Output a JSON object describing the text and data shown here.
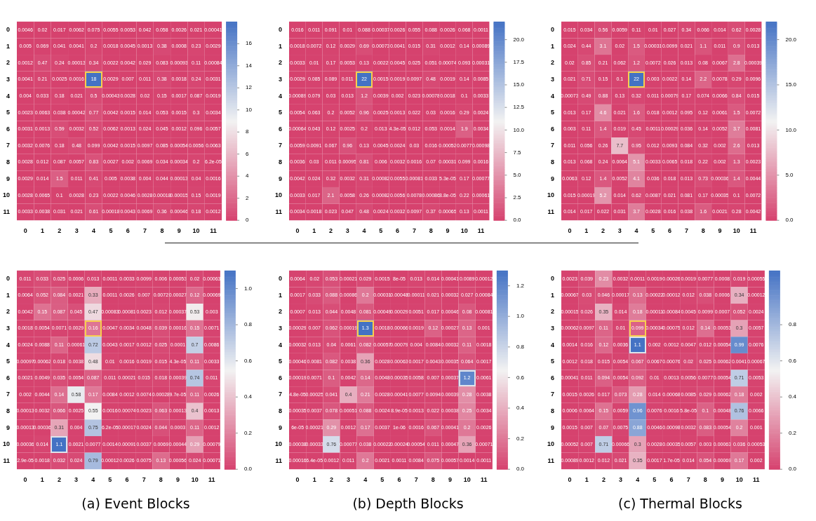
{
  "chart_data": [
    {
      "type": "heatmap",
      "categories": [
        "0",
        "1",
        "2",
        "3",
        "4",
        "5",
        "6",
        "7",
        "8",
        "9",
        "10",
        "11"
      ],
      "y_categories": [
        "0",
        "1",
        "2",
        "3",
        "4",
        "5",
        "6",
        "7",
        "8",
        "9",
        "10",
        "11"
      ],
      "data_labels": true,
      "clim": [
        0,
        18
      ],
      "cticks": [
        0,
        2,
        4,
        6,
        8,
        10,
        12,
        14,
        16
      ],
      "cells": [
        [
          0.0046,
          0.02,
          0.017,
          0.0062,
          0.075,
          0.0055,
          0.0053,
          0.042,
          0.058,
          0.0026,
          0.021,
          0.00041
        ],
        [
          0.005,
          0.069,
          0.041,
          0.0041,
          0.2,
          0.0018,
          0.0045,
          0.0013,
          0.38,
          0.0008,
          0.23,
          0.0029
        ],
        [
          0.0012,
          0.47,
          0.24,
          0.00013,
          0.34,
          0.0022,
          0.0042,
          0.029,
          0.083,
          0.00093,
          0.11,
          0.00084
        ],
        [
          0.0041,
          0.21,
          0.0025,
          0.0016,
          18,
          0.0029,
          0.007,
          0.011,
          0.38,
          0.0018,
          0.24,
          0.0031
        ],
        [
          0.004,
          0.033,
          0.18,
          0.021,
          0.5,
          0.00043,
          0.0028,
          0.02,
          0.15,
          0.0017,
          0.087,
          0.0019
        ],
        [
          0.0023,
          0.0063,
          0.038,
          0.00042,
          0.77,
          0.0042,
          0.0015,
          0.014,
          0.053,
          0.0015,
          0.3,
          0.0034
        ],
        [
          0.0031,
          0.0013,
          0.59,
          0.0032,
          0.52,
          0.0062,
          0.0013,
          0.024,
          0.045,
          0.0012,
          0.096,
          0.0057
        ],
        [
          0.0032,
          0.0076,
          0.18,
          0.48,
          0.099,
          0.0042,
          0.0015,
          0.0097,
          0.085,
          0.00054,
          0.0056,
          0.0063
        ],
        [
          0.0028,
          0.012,
          0.087,
          0.0057,
          0.83,
          0.0027,
          0.002,
          0.0069,
          0.034,
          0.00034,
          0.2,
          6.2e-05
        ],
        [
          0.0029,
          0.014,
          1.5,
          0.011,
          0.41,
          0.005,
          0.0038,
          0.004,
          0.044,
          0.00013,
          0.04,
          0.0016
        ],
        [
          0.0028,
          0.0065,
          0.1,
          0.0028,
          0.23,
          0.0022,
          0.0046,
          0.0028,
          0.00018,
          0.00015,
          0.15,
          0.0019
        ],
        [
          0.0033,
          0.0038,
          0.031,
          0.021,
          0.61,
          0.00018,
          0.0043,
          0.0069,
          0.36,
          0.00046,
          0.18,
          0.0012
        ]
      ]
    },
    {
      "type": "heatmap",
      "categories": [
        "0",
        "1",
        "2",
        "3",
        "4",
        "5",
        "6",
        "7",
        "8",
        "9",
        "10",
        "11"
      ],
      "y_categories": [
        "0",
        "1",
        "2",
        "3",
        "4",
        "5",
        "6",
        "7",
        "8",
        "9",
        "10",
        "11"
      ],
      "data_labels": true,
      "clim": [
        0,
        22
      ],
      "cticks": [
        {
          "value": 0,
          "label": "0.0"
        },
        {
          "value": 2.5,
          "label": "2.5"
        },
        {
          "value": 5,
          "label": "5.0"
        },
        {
          "value": 7.5,
          "label": "7.5"
        },
        {
          "value": 10,
          "label": "10.0"
        },
        {
          "value": 12.5,
          "label": "12.5"
        },
        {
          "value": 15,
          "label": "15.0"
        },
        {
          "value": 17.5,
          "label": "17.5"
        },
        {
          "value": 20,
          "label": "20.0"
        }
      ],
      "cells": [
        [
          0.016,
          0.011,
          0.091,
          0.01,
          0.088,
          0.00037,
          0.0026,
          0.055,
          0.088,
          0.0026,
          0.068,
          0.0011
        ],
        [
          0.0018,
          0.0072,
          0.12,
          0.0029,
          0.69,
          0.00073,
          0.0041,
          0.015,
          0.31,
          0.0012,
          0.14,
          0.00089
        ],
        [
          0.0033,
          0.01,
          0.17,
          0.0053,
          0.13,
          0.0022,
          0.0045,
          0.025,
          0.051,
          0.00074,
          0.093,
          0.00031
        ],
        [
          0.0029,
          0.085,
          0.089,
          0.011,
          22,
          0.0015,
          0.0019,
          0.0097,
          0.48,
          0.0019,
          0.14,
          0.0085
        ],
        [
          0.00089,
          0.079,
          0.03,
          0.013,
          1.2,
          0.0039,
          0.002,
          0.023,
          0.00078,
          0.0018,
          0.1,
          0.0033
        ],
        [
          0.0054,
          0.063,
          0.2,
          0.0052,
          0.96,
          0.0025,
          0.0013,
          0.022,
          0.03,
          0.0016,
          0.29,
          0.0024
        ],
        [
          0.00064,
          0.043,
          0.12,
          0.0025,
          0.2,
          0.013,
          4.3e-05,
          0.012,
          0.053,
          0.0014,
          1.9,
          0.0034
        ],
        [
          0.0059,
          0.0091,
          0.067,
          0.96,
          0.13,
          0.0045,
          0.0024,
          0.03,
          0.016,
          0.00052,
          0.0077,
          0.00098
        ],
        [
          0.0036,
          0.03,
          0.011,
          0.00095,
          0.81,
          0.006,
          0.0032,
          0.0016,
          0.07,
          0.00031,
          0.099,
          0.0016
        ],
        [
          0.0042,
          0.024,
          0.32,
          0.0032,
          0.31,
          0.00082,
          0.0055,
          0.00081,
          0.033,
          5.3e-05,
          0.17,
          0.00077
        ],
        [
          0.0033,
          0.017,
          2.1,
          0.0058,
          0.26,
          0.00082,
          0.0056,
          0.0078,
          0.00086,
          8.8e-05,
          0.22,
          0.00061
        ],
        [
          0.0034,
          0.0018,
          0.023,
          0.047,
          0.48,
          0.0024,
          0.0032,
          0.0097,
          0.37,
          0.00065,
          0.13,
          0.0011
        ]
      ]
    },
    {
      "type": "heatmap",
      "categories": [
        "0",
        "1",
        "2",
        "3",
        "4",
        "5",
        "6",
        "7",
        "8",
        "9",
        "10",
        "11"
      ],
      "y_categories": [
        "0",
        "1",
        "2",
        "3",
        "4",
        "5",
        "6",
        "7",
        "8",
        "9",
        "10",
        "11"
      ],
      "data_labels": true,
      "clim": [
        0,
        22
      ],
      "cticks": [
        {
          "value": 0,
          "label": "0.0"
        },
        {
          "value": 5,
          "label": "5.0"
        },
        {
          "value": 10,
          "label": "10.0"
        },
        {
          "value": 15,
          "label": "15.0"
        },
        {
          "value": 20,
          "label": "20.0"
        }
      ],
      "cells": [
        [
          0.015,
          0.034,
          0.56,
          0.0059,
          0.11,
          0.01,
          0.027,
          0.34,
          0.066,
          0.014,
          0.62,
          0.0028
        ],
        [
          0.024,
          0.44,
          3.1,
          0.02,
          1.5,
          0.00031,
          0.0099,
          0.021,
          1.1,
          0.011,
          0.9,
          0.013
        ],
        [
          0.02,
          0.85,
          0.21,
          0.062,
          1.2,
          0.0072,
          0.026,
          0.013,
          0.08,
          0.0067,
          2.8,
          0.00039
        ],
        [
          0.021,
          0.71,
          0.15,
          0.1,
          22,
          0.003,
          0.0022,
          0.14,
          2.2,
          0.0078,
          0.29,
          0.0096
        ],
        [
          0.00073,
          0.49,
          0.88,
          0.13,
          0.32,
          0.011,
          0.00079,
          0.17,
          0.074,
          0.0066,
          0.84,
          0.015
        ],
        [
          0.013,
          0.17,
          4.6,
          0.021,
          1.6,
          0.018,
          0.0012,
          0.095,
          0.12,
          0.0061,
          1.5,
          0.0072
        ],
        [
          0.003,
          0.11,
          1.4,
          0.019,
          0.45,
          0.0011,
          0.00029,
          0.036,
          0.14,
          0.0052,
          3.7,
          0.0081
        ],
        [
          0.011,
          0.056,
          0.26,
          7.7,
          0.95,
          0.012,
          0.0093,
          0.084,
          0.32,
          0.002,
          2.6,
          0.013
        ],
        [
          0.013,
          0.068,
          0.24,
          0.0064,
          5.1,
          0.0033,
          0.0065,
          0.018,
          0.22,
          0.002,
          1.3,
          0.0023
        ],
        [
          0.0063,
          0.12,
          1.4,
          0.0052,
          4.1,
          0.036,
          0.018,
          0.013,
          0.73,
          0.00036,
          1.4,
          0.0044
        ],
        [
          0.015,
          0.00019,
          5.2,
          0.014,
          0.62,
          0.0087,
          0.021,
          0.081,
          0.17,
          0.00035,
          0.1,
          0.0072
        ],
        [
          0.014,
          0.017,
          0.022,
          0.031,
          3.7,
          0.0028,
          0.016,
          0.038,
          1.6,
          0.0021,
          0.28,
          0.0042
        ]
      ]
    },
    {
      "type": "heatmap",
      "categories": [
        "0",
        "1",
        "2",
        "3",
        "4",
        "5",
        "6",
        "7",
        "8",
        "9",
        "10",
        "11"
      ],
      "y_categories": [
        "0",
        "1",
        "2",
        "3",
        "4",
        "5",
        "6",
        "7",
        "8",
        "9",
        "10",
        "11"
      ],
      "data_labels": true,
      "clim": [
        0,
        1.1
      ],
      "cticks": [
        {
          "value": 0,
          "label": "0.0"
        },
        {
          "value": 0.2,
          "label": "0.2"
        },
        {
          "value": 0.4,
          "label": "0.4"
        },
        {
          "value": 0.6,
          "label": "0.6"
        },
        {
          "value": 0.8,
          "label": "0.8"
        },
        {
          "value": 1,
          "label": "1.0"
        }
      ],
      "annotations": [
        "(a) Event Blocks"
      ],
      "cells": [
        [
          0.011,
          0.033,
          0.025,
          0.0006,
          0.013,
          0.0011,
          0.0033,
          0.0099,
          0.006,
          0.00053,
          0.02,
          0.00063
        ],
        [
          0.0064,
          0.052,
          0.084,
          0.0021,
          0.33,
          0.0011,
          0.0026,
          0.007,
          0.0072,
          0.00027,
          0.12,
          0.00069
        ],
        [
          0.0042,
          0.15,
          0.087,
          0.045,
          0.47,
          0.00083,
          0.00081,
          0.0023,
          0.012,
          0.00037,
          0.53,
          0.003
        ],
        [
          0.0018,
          0.0054,
          0.0071,
          0.0029,
          0.16,
          0.0047,
          0.0034,
          0.0048,
          0.039,
          0.00016,
          0.15,
          0.0071
        ],
        [
          0.0024,
          0.0088,
          0.11,
          0.00061,
          0.72,
          0.0043,
          0.0017,
          0.0012,
          0.025,
          0.0001,
          0.7,
          0.0086
        ],
        [
          0.00097,
          0.00062,
          0.018,
          0.0038,
          0.48,
          0.01,
          0.0016,
          0.0019,
          0.015,
          4.3e-05,
          0.11,
          0.0033
        ],
        [
          0.0021,
          0.0049,
          0.035,
          0.0054,
          0.087,
          0.011,
          0.00021,
          0.015,
          0.018,
          0.00039,
          0.74,
          0.011
        ],
        [
          0.002,
          0.0044,
          0.14,
          0.58,
          0.17,
          0.0084,
          0.0012,
          0.0074,
          0.00028,
          9.7e-05,
          0.11,
          0.0026
        ],
        [
          0.00013,
          0.0032,
          0.066,
          0.0025,
          0.55,
          0.0016,
          0.00074,
          0.0023,
          0.063,
          0.00013,
          0.4,
          0.0013
        ],
        [
          0.00013,
          0.00036,
          0.31,
          0.004,
          0.75,
          6.2e-05,
          0.00017,
          0.0024,
          0.044,
          0.0003,
          0.11,
          0.0012
        ],
        [
          0.00036,
          0.014,
          1.1,
          0.0021,
          0.0077,
          0.0014,
          0.00091,
          0.0037,
          0.0069,
          0.00044,
          0.29,
          0.00079
        ],
        [
          2.9e-05,
          0.0018,
          0.032,
          0.024,
          0.79,
          0.00012,
          0.0026,
          0.0075,
          0.13,
          0.00056,
          0.024,
          0.00071
        ]
      ]
    },
    {
      "type": "heatmap",
      "categories": [
        "0",
        "1",
        "2",
        "3",
        "4",
        "5",
        "6",
        "7",
        "8",
        "9",
        "10",
        "11"
      ],
      "y_categories": [
        "0",
        "1",
        "2",
        "3",
        "4",
        "5",
        "6",
        "7",
        "8",
        "9",
        "10",
        "11"
      ],
      "data_labels": true,
      "clim": [
        0,
        1.3
      ],
      "cticks": [
        {
          "value": 0,
          "label": "0.0"
        },
        {
          "value": 0.2,
          "label": "0.2"
        },
        {
          "value": 0.4,
          "label": "0.4"
        },
        {
          "value": 0.6,
          "label": "0.6"
        },
        {
          "value": 0.8,
          "label": "0.8"
        },
        {
          "value": 1,
          "label": "1.0"
        },
        {
          "value": 1.2,
          "label": "1.2"
        }
      ],
      "annotations": [
        "(b) Depth Blocks"
      ],
      "cells": [
        [
          0.0064,
          0.02,
          0.053,
          0.00021,
          0.029,
          0.0015,
          8e-05,
          0.013,
          0.014,
          0.00041,
          0.0089,
          0.00012
        ],
        [
          0.0017,
          0.033,
          0.088,
          0.00086,
          0.2,
          0.00031,
          0.00048,
          0.00011,
          0.021,
          0.00032,
          0.027,
          0.00084
        ],
        [
          0.0007,
          0.013,
          0.044,
          0.0048,
          0.081,
          0.00049,
          0.00029,
          0.0051,
          0.017,
          0.00046,
          0.08,
          0.00081
        ],
        [
          0.00029,
          0.007,
          0.062,
          0.00019,
          1.3,
          0.0018,
          0.00066,
          0.0019,
          0.12,
          0.00027,
          0.13,
          0.001
        ],
        [
          0.00032,
          0.013,
          0.04,
          0.0061,
          0.082,
          0.00057,
          0.00079,
          0.004,
          0.0084,
          0.00032,
          0.11,
          0.0018
        ],
        [
          0.00046,
          0.0081,
          0.082,
          0.0038,
          0.36,
          0.0028,
          0.00063,
          0.0017,
          0.0043,
          0.00035,
          0.064,
          0.0017
        ],
        [
          0.00019,
          0.0071,
          0.1,
          0.0042,
          0.14,
          0.0048,
          0.00035,
          0.0058,
          0.007,
          0.00037,
          1.2,
          0.0061
        ],
        [
          4.8e-05,
          0.00025,
          0.041,
          0.4,
          0.21,
          0.0028,
          0.00041,
          0.0077,
          0.0094,
          0.00039,
          0.28,
          0.0038
        ],
        [
          0.00035,
          0.0037,
          0.078,
          0.00051,
          0.088,
          0.0024,
          8.9e-05,
          0.0013,
          0.022,
          0.00038,
          0.25,
          0.0034
        ],
        [
          6e-05,
          0.00021,
          0.29,
          0.0012,
          0.17,
          0.0037,
          1e-06,
          0.0016,
          0.067,
          0.00041,
          0.2,
          0.0026
        ],
        [
          0.00038,
          0.00033,
          0.76,
          0.00077,
          0.038,
          0.00022,
          0.00024,
          0.00054,
          0.011,
          0.00047,
          0.36,
          0.00071
        ],
        [
          0.00016,
          6.4e-05,
          0.0012,
          0.011,
          0.2,
          0.0021,
          0.0011,
          0.0084,
          0.075,
          0.00057,
          0.0014,
          0.0011
        ]
      ]
    },
    {
      "type": "heatmap",
      "categories": [
        "0",
        "1",
        "2",
        "3",
        "4",
        "5",
        "6",
        "7",
        "8",
        "9",
        "10",
        "11"
      ],
      "y_categories": [
        "0",
        "1",
        "2",
        "3",
        "4",
        "5",
        "6",
        "7",
        "8",
        "9",
        "10",
        "11"
      ],
      "data_labels": true,
      "clim": [
        0,
        1.1
      ],
      "cticks": [
        {
          "value": 0,
          "label": "0.0"
        },
        {
          "value": 0.2,
          "label": "0.2"
        },
        {
          "value": 0.4,
          "label": "0.4"
        },
        {
          "value": 0.6,
          "label": "0.6"
        },
        {
          "value": 0.8,
          "label": "0.8"
        }
      ],
      "annotations": [
        "(c) Thermal Blocks"
      ],
      "cells": [
        [
          0.0023,
          0.039,
          0.23,
          0.0032,
          0.0011,
          0.0019,
          0.00026,
          0.0019,
          0.0077,
          0.0008,
          0.019,
          0.00055
        ],
        [
          0.00067,
          0.03,
          0.046,
          0.00017,
          0.13,
          0.00022,
          0.00012,
          0.012,
          0.038,
          0.0006,
          0.34,
          0.00012
        ],
        [
          0.00015,
          0.026,
          0.35,
          0.014,
          0.18,
          0.00011,
          0.00084,
          0.0045,
          0.0099,
          0.0007,
          0.052,
          0.0024
        ],
        [
          0.00062,
          0.0097,
          0.11,
          0.01,
          0.099,
          0.00034,
          0.00075,
          0.012,
          0.14,
          0.00053,
          0.3,
          0.0057
        ],
        [
          0.0014,
          0.016,
          0.12,
          0.0036,
          1.1,
          0.002,
          0.0012,
          0.0047,
          0.012,
          0.00054,
          0.99,
          0.0076
        ],
        [
          0.0012,
          0.018,
          0.015,
          0.0054,
          0.067,
          0.0067,
          0.00076,
          0.02,
          0.025,
          0.00062,
          0.0041,
          0.00067
        ],
        [
          0.00041,
          0.011,
          0.094,
          0.0054,
          0.092,
          0.01,
          0.0013,
          0.0056,
          0.0077,
          0.00054,
          0.71,
          0.0053
        ],
        [
          0.0015,
          0.0026,
          0.017,
          0.073,
          0.28,
          0.014,
          0.00068,
          0.0085,
          0.029,
          0.00062,
          0.18,
          0.002
        ],
        [
          0.0006,
          0.0064,
          0.15,
          0.0059,
          0.96,
          0.0076,
          0.0016,
          5.8e-05,
          0.1,
          0.00048,
          0.76,
          0.0066
        ],
        [
          0.0015,
          0.007,
          0.07,
          0.0075,
          0.88,
          0.0046,
          0.00098,
          0.0032,
          0.083,
          0.00054,
          0.2,
          0.001
        ],
        [
          0.00052,
          0.007,
          0.71,
          0.00066,
          0.3,
          0.0028,
          0.00035,
          0.0057,
          0.003,
          0.00063,
          0.036,
          0.00053
        ],
        [
          0.00089,
          0.0012,
          0.012,
          0.021,
          0.35,
          0.0017,
          1.7e-05,
          0.014,
          0.054,
          0.00069,
          0.17,
          0.002
        ]
      ]
    }
  ]
}
